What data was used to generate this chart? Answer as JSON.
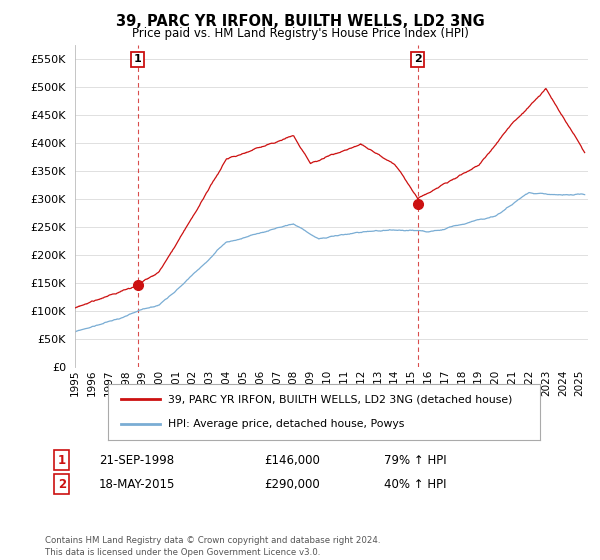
{
  "title": "39, PARC YR IRFON, BUILTH WELLS, LD2 3NG",
  "subtitle": "Price paid vs. HM Land Registry's House Price Index (HPI)",
  "ytick_vals": [
    0,
    50000,
    100000,
    150000,
    200000,
    250000,
    300000,
    350000,
    400000,
    450000,
    500000,
    550000
  ],
  "ylim": [
    0,
    575000
  ],
  "xlim_start": 1995.0,
  "xlim_end": 2025.5,
  "hpi_color": "#7aadd4",
  "price_color": "#cc1111",
  "dashed_line_color": "#cc1111",
  "transaction1": {
    "date_num": 1998.72,
    "price": 146000,
    "label": "1",
    "date_str": "21-SEP-1998",
    "pct": "79%"
  },
  "transaction2": {
    "date_num": 2015.38,
    "price": 290000,
    "label": "2",
    "date_str": "18-MAY-2015",
    "pct": "40%"
  },
  "legend_price_label": "39, PARC YR IRFON, BUILTH WELLS, LD2 3NG (detached house)",
  "legend_hpi_label": "HPI: Average price, detached house, Powys",
  "footer": "Contains HM Land Registry data © Crown copyright and database right 2024.\nThis data is licensed under the Open Government Licence v3.0.",
  "background_color": "#ffffff",
  "grid_color": "#e0e0e0",
  "xtick_years": [
    1995,
    1996,
    1997,
    1998,
    1999,
    2000,
    2001,
    2002,
    2003,
    2004,
    2005,
    2006,
    2007,
    2008,
    2009,
    2010,
    2011,
    2012,
    2013,
    2014,
    2015,
    2016,
    2017,
    2018,
    2019,
    2020,
    2021,
    2022,
    2023,
    2024,
    2025
  ]
}
